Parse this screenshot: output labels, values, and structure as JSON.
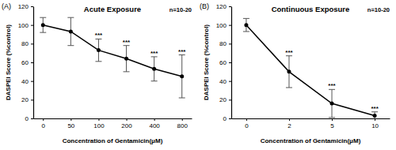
{
  "chart_data": [
    {
      "type": "line",
      "panel": "(A)",
      "title": "Acute Exposure",
      "subtitle": "n=10-20",
      "x_label": "Concentration of Gentamicin(μM)",
      "y_label": "DASPEI Score (%control)",
      "categories": [
        "0",
        "50",
        "100",
        "200",
        "400",
        "800"
      ],
      "series": [
        {
          "color": "#000000",
          "marker": "circle",
          "line_style": "solid",
          "values": [
            100,
            93,
            73,
            64,
            53,
            45
          ],
          "error": [
            8,
            15,
            12,
            14,
            13,
            23
          ],
          "significance": [
            null,
            null,
            "***",
            "***",
            "***",
            "***"
          ]
        }
      ],
      "ylim": [
        0,
        120
      ],
      "yticks": [
        0,
        20,
        40,
        60,
        80,
        100,
        120
      ],
      "grid": false
    },
    {
      "type": "line",
      "panel": "(B)",
      "title": "Continuous Exposure",
      "subtitle": "n=10-20",
      "x_label": "Concentration of Gentamicin(μM)",
      "y_label": "DASPEI Score (%control)",
      "categories": [
        "0",
        "2",
        "5",
        "10"
      ],
      "series": [
        {
          "color": "#000000",
          "marker": "circle",
          "line_style": "solid",
          "values": [
            100,
            50,
            16,
            3
          ],
          "error": [
            7,
            17,
            15,
            4
          ],
          "significance": [
            null,
            "***",
            "***",
            "***"
          ]
        }
      ],
      "ylim": [
        0,
        120
      ],
      "yticks": [
        0,
        20,
        40,
        60,
        80,
        100,
        120
      ],
      "grid": false
    }
  ]
}
